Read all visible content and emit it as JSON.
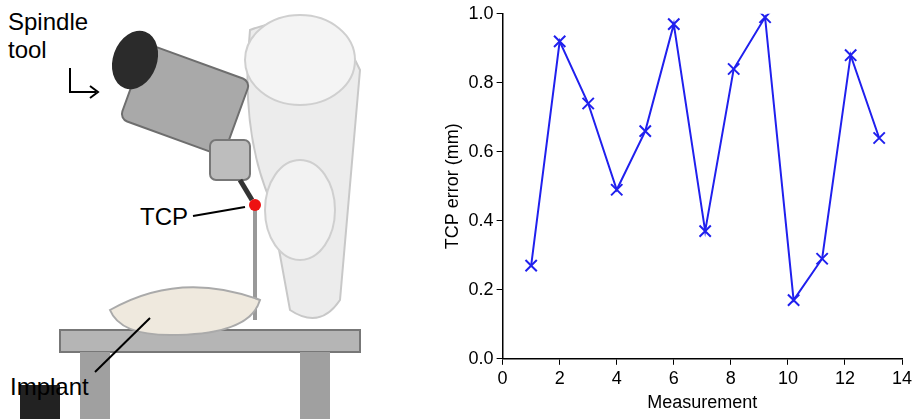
{
  "chart_data": {
    "type": "line",
    "x_label": "Measurement",
    "y_label": "TCP error (mm)",
    "x": [
      1.0,
      2.0,
      3.0,
      4.0,
      5.0,
      6.0,
      7.1,
      8.1,
      9.2,
      10.2,
      11.2,
      12.2,
      13.2
    ],
    "values": [
      0.27,
      0.92,
      0.74,
      0.49,
      0.66,
      0.97,
      0.37,
      0.84,
      0.99,
      0.17,
      0.29,
      0.88,
      0.64
    ],
    "color": "#2020ee",
    "marker": "x",
    "xlim": [
      0,
      14
    ],
    "xticks": [
      0,
      2,
      4,
      6,
      8,
      10,
      12,
      14
    ],
    "ylim": [
      0,
      1.0
    ],
    "yticks": [
      {
        "value": 0,
        "label": "0.0"
      },
      0.2,
      0.4,
      0.6,
      0.8,
      {
        "value": 1.0,
        "label": "1.0"
      }
    ],
    "grid": false
  },
  "photo": {
    "labels": [
      "Spindle tool",
      "TCP",
      "Implant"
    ]
  }
}
